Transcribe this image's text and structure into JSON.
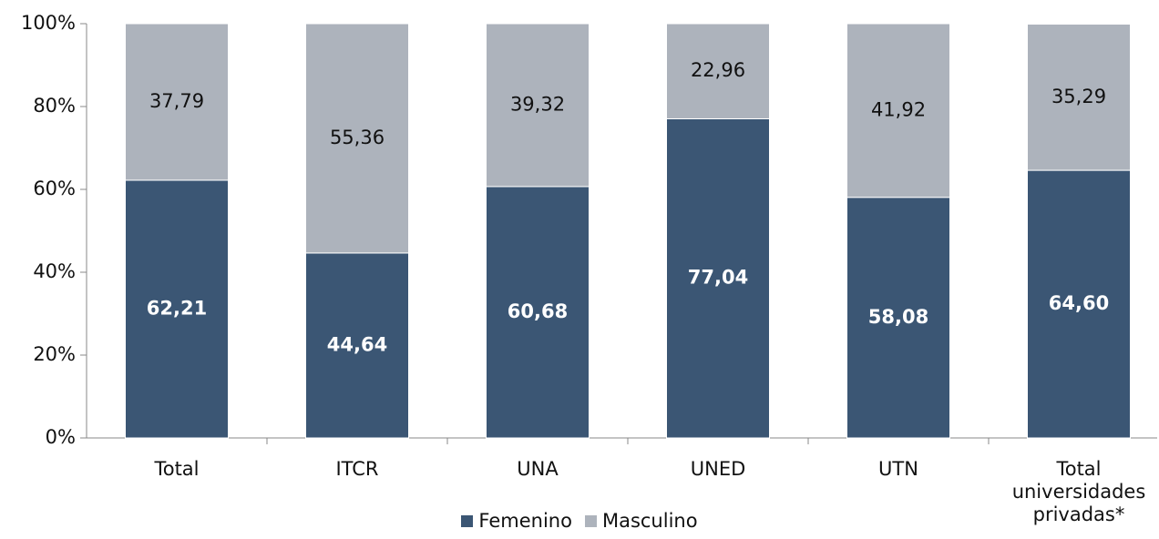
{
  "chart_data": {
    "type": "stacked_bar",
    "categories": [
      "Total",
      "ITCR",
      "UNA",
      "UNED",
      "UTN",
      "Total universidades privadas*"
    ],
    "series": [
      {
        "name": "Femenino",
        "color": "#3b5674",
        "values": [
          62.21,
          44.64,
          60.68,
          77.04,
          58.08,
          64.6
        ],
        "value_labels": [
          "62,21",
          "44,64",
          "60,68",
          "77,04",
          "58,08",
          "64,60"
        ]
      },
      {
        "name": "Masculino",
        "color": "#adb3bc",
        "values": [
          37.79,
          55.36,
          39.32,
          22.96,
          41.92,
          35.29
        ],
        "value_labels": [
          "37,79",
          "55,36",
          "39,32",
          "22,96",
          "41,92",
          "35,29"
        ]
      }
    ],
    "ylim": [
      0,
      100
    ],
    "yticks": [
      {
        "value": 0,
        "label": "0%"
      },
      {
        "value": 20,
        "label": "20%"
      },
      {
        "value": 40,
        "label": "40%"
      },
      {
        "value": 60,
        "label": "60%"
      },
      {
        "value": 80,
        "label": "80%"
      },
      {
        "value": 100,
        "label": "100%"
      }
    ],
    "legend": "bottom"
  }
}
